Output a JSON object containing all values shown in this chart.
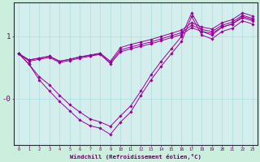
{
  "xlabel": "Windchill (Refroidissement éolien,°C)",
  "x": [
    0,
    1,
    2,
    3,
    4,
    5,
    6,
    7,
    8,
    9,
    10,
    11,
    12,
    13,
    14,
    15,
    16,
    17,
    18,
    19,
    20,
    21,
    22,
    23
  ],
  "lines": [
    [
      0.72,
      0.62,
      0.65,
      0.68,
      0.6,
      0.63,
      0.67,
      0.7,
      0.73,
      0.6,
      0.82,
      0.87,
      0.91,
      0.95,
      1.0,
      1.05,
      1.1,
      1.22,
      1.15,
      1.12,
      1.22,
      1.27,
      1.38,
      1.33
    ],
    [
      0.72,
      0.62,
      0.65,
      0.68,
      0.6,
      0.63,
      0.67,
      0.69,
      0.72,
      0.58,
      0.78,
      0.83,
      0.87,
      0.91,
      0.96,
      1.01,
      1.06,
      1.18,
      1.11,
      1.08,
      1.18,
      1.23,
      1.34,
      1.29
    ],
    [
      0.72,
      0.6,
      0.63,
      0.66,
      0.58,
      0.61,
      0.65,
      0.68,
      0.71,
      0.56,
      0.75,
      0.8,
      0.84,
      0.88,
      0.93,
      0.98,
      1.03,
      1.14,
      1.08,
      1.05,
      1.15,
      1.2,
      1.3,
      1.25
    ],
    [
      0.72,
      0.55,
      0.35,
      0.22,
      0.05,
      -0.1,
      -0.22,
      -0.33,
      -0.38,
      -0.45,
      -0.28,
      -0.12,
      0.12,
      0.38,
      0.6,
      0.8,
      1.0,
      1.38,
      1.08,
      1.02,
      1.15,
      1.2,
      1.32,
      1.27
    ],
    [
      0.72,
      0.55,
      0.3,
      0.12,
      -0.05,
      -0.2,
      -0.35,
      -0.44,
      -0.48,
      -0.58,
      -0.38,
      -0.22,
      0.05,
      0.3,
      0.52,
      0.72,
      0.92,
      1.32,
      1.02,
      0.96,
      1.08,
      1.13,
      1.25,
      1.2
    ]
  ],
  "line_color": "#990099",
  "bg_color": "#cceedd",
  "plot_bg": "#d4eeee",
  "grid_color": "#aadddd",
  "axis_color": "#660066",
  "ylim": [
    -0.75,
    1.55
  ],
  "marker": "D",
  "marker_size": 1.8,
  "linewidth": 0.7
}
